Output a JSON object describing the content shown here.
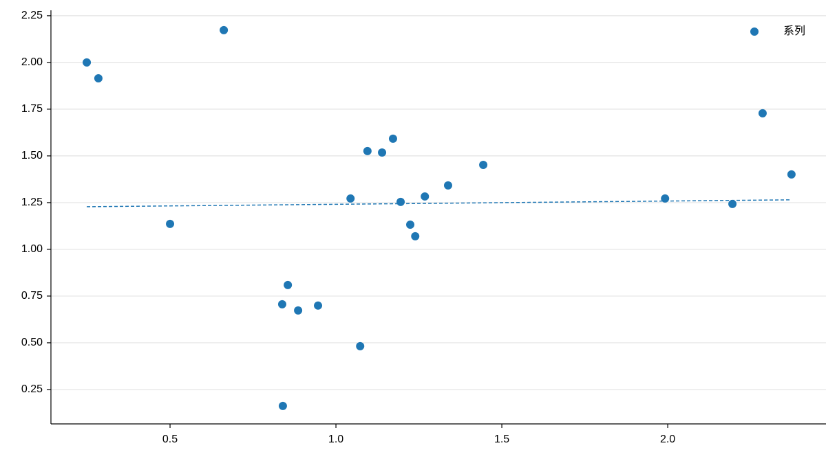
{
  "chart_data": {
    "type": "scatter",
    "series": [
      {
        "name": "系列",
        "color": "#1f77b4",
        "x": [
          0.249,
          0.284,
          0.5,
          0.662,
          0.838,
          0.855,
          0.84,
          0.886,
          0.946,
          1.044,
          1.073,
          1.095,
          1.139,
          1.172,
          1.195,
          1.224,
          1.239,
          1.268,
          1.338,
          1.444,
          1.992,
          2.195,
          2.286,
          2.373
        ],
        "values": [
          2.0,
          1.915,
          1.136,
          2.173,
          0.706,
          0.809,
          0.162,
          0.673,
          0.699,
          1.272,
          0.482,
          1.526,
          1.518,
          1.592,
          1.254,
          1.132,
          1.07,
          1.283,
          1.342,
          1.452,
          1.272,
          1.243,
          1.728,
          1.401
        ]
      }
    ],
    "trend": {
      "color": "#1f77b4",
      "x": [
        0.249,
        2.373
      ],
      "values": [
        1.228,
        1.265
      ]
    },
    "xlim": [
      0.141,
      2.477
    ],
    "ylim": [
      0.066,
      2.279
    ],
    "xticks": [
      {
        "value": 0.5,
        "label": "0.5"
      },
      {
        "value": 1.0,
        "label": "1.0"
      },
      {
        "value": 1.5,
        "label": "1.5"
      },
      {
        "value": 2.0,
        "label": "2.0"
      }
    ],
    "yticks": [
      0.25,
      {
        "value": 0.5,
        "label": "0.50"
      },
      0.75,
      {
        "value": 1.0,
        "label": "1.00"
      },
      1.25,
      {
        "value": 1.5,
        "label": "1.50"
      },
      1.75,
      {
        "value": 2.0,
        "label": "2.00"
      },
      2.25
    ],
    "grid": "y",
    "legend": "upper right"
  }
}
